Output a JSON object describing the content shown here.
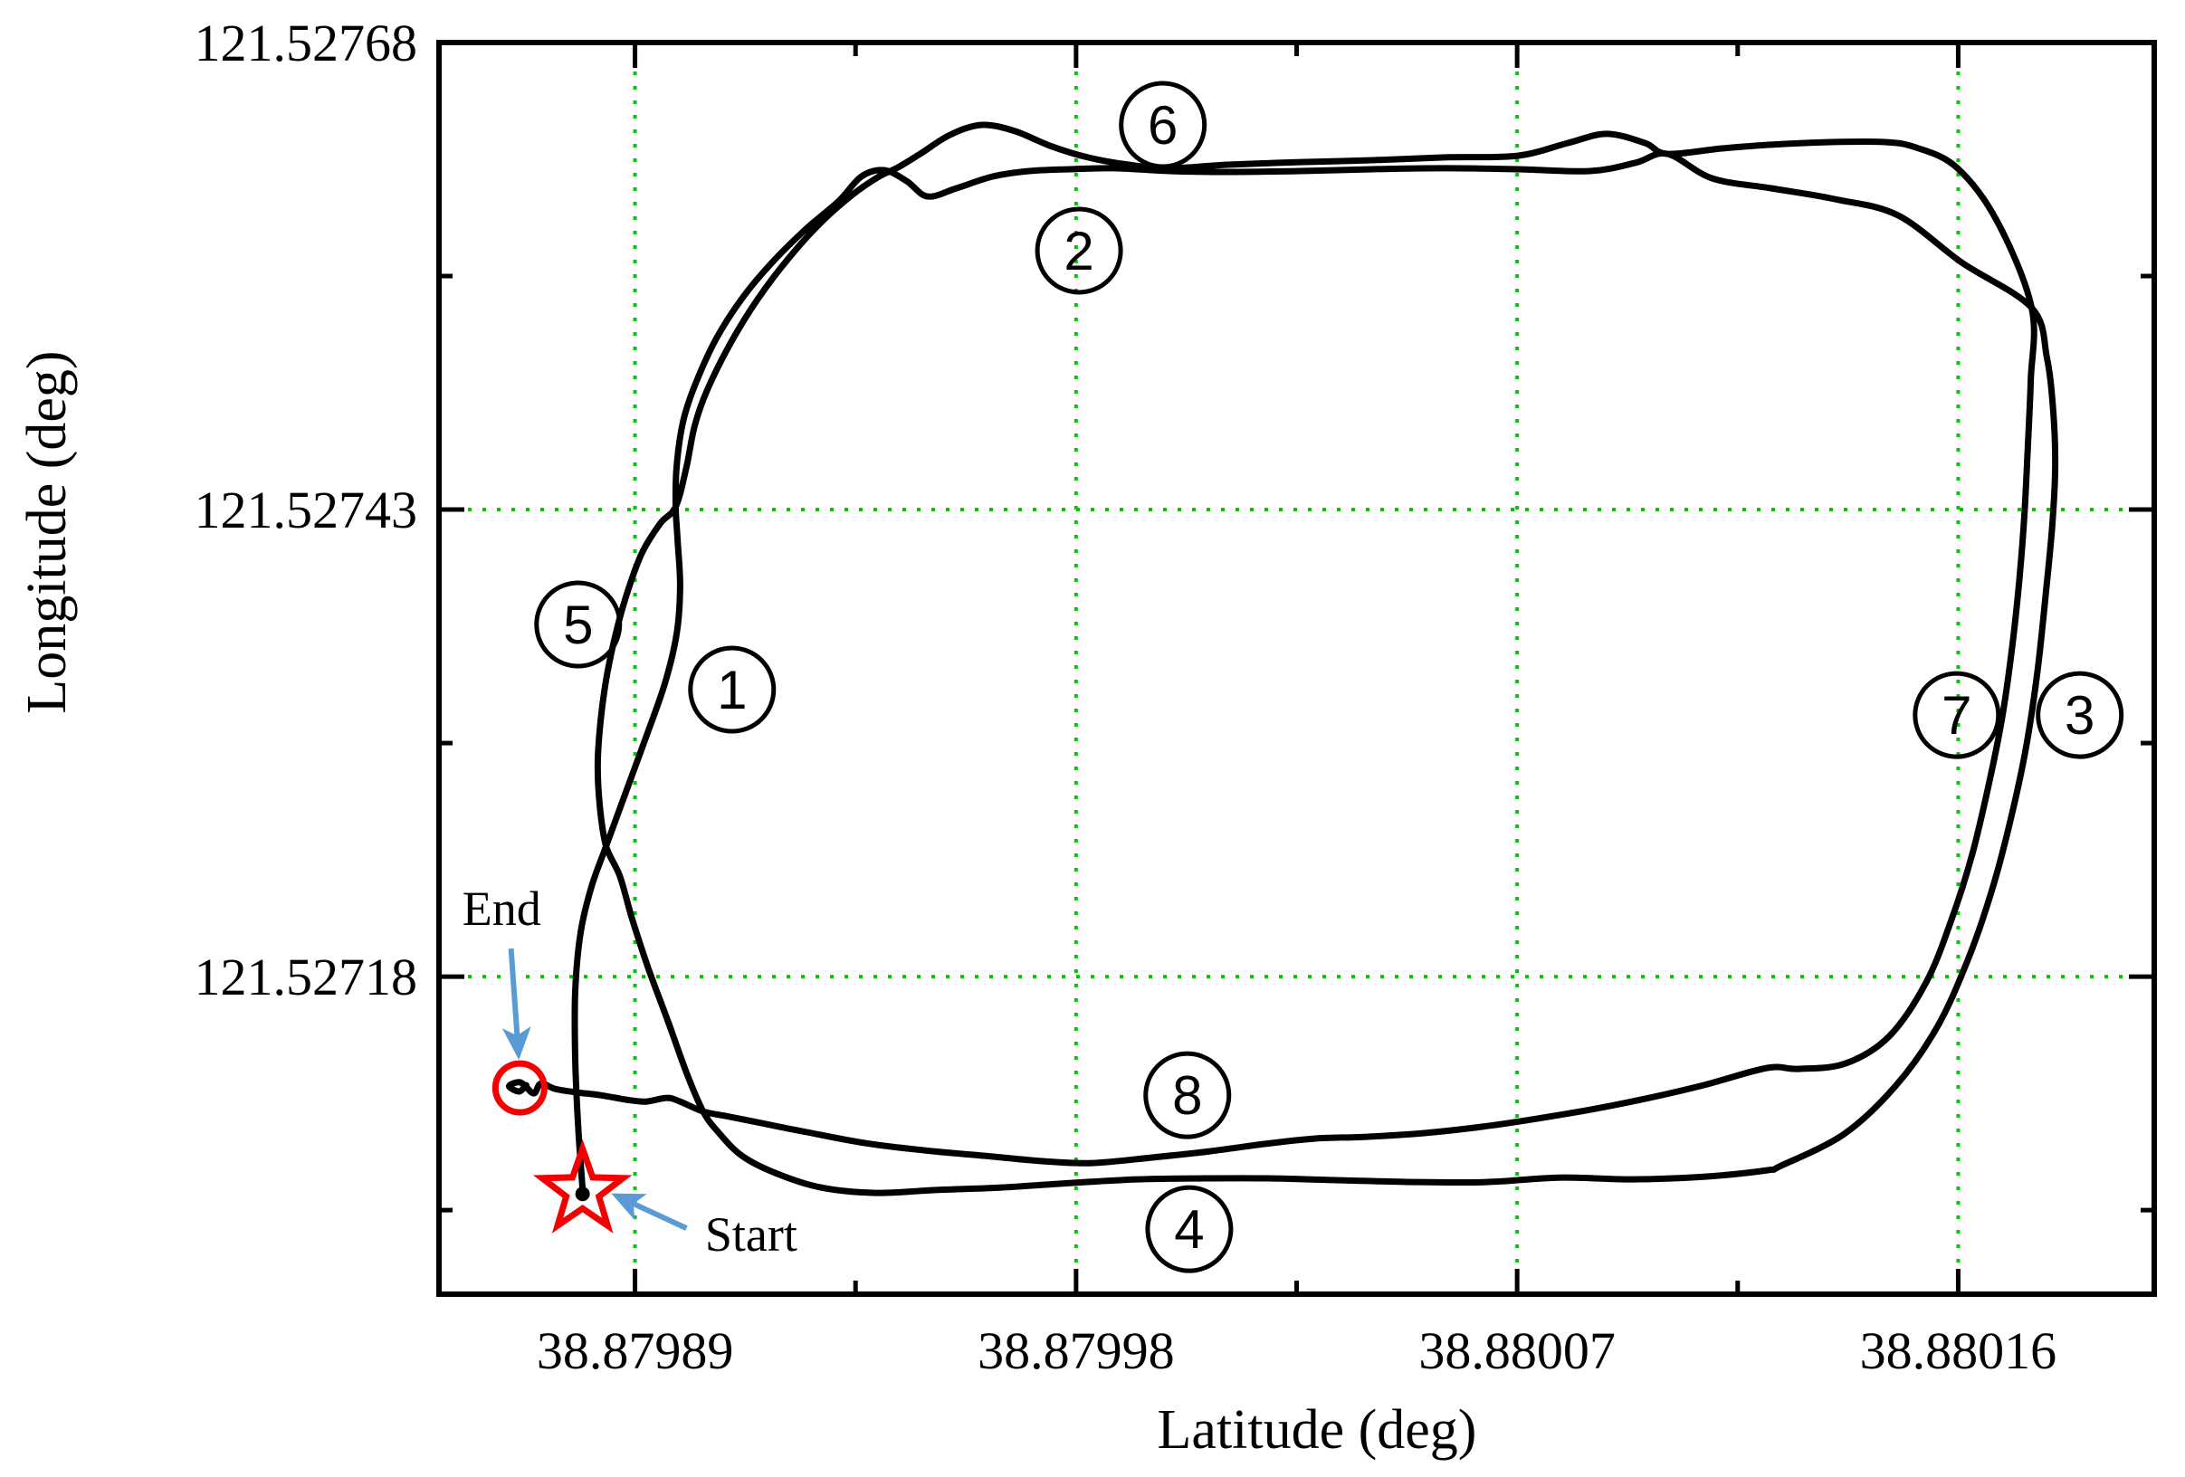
{
  "figure": {
    "background": "#ffffff",
    "frame_color": "#000000",
    "grid_color": "#00c800",
    "path_color": "#000000",
    "marker_color": "#f40000",
    "arrow_color": "#5b9bd5",
    "text_color": "#000000"
  },
  "chart_data": {
    "type": "line",
    "title": "",
    "xlabel": "Latitude (deg)",
    "ylabel": "Longitude (deg)",
    "legend": "none",
    "grid": "dotted green on major ticks",
    "x_range": [
      38.87985,
      38.8802
    ],
    "y_range": [
      121.52701,
      121.52768
    ],
    "x_ticks": [
      {
        "value": 38.87989,
        "label": "38.87989"
      },
      {
        "value": 38.87998,
        "label": "38.87998"
      },
      {
        "value": 38.88007,
        "label": "38.88007"
      },
      {
        "value": 38.88016,
        "label": "38.88016"
      }
    ],
    "y_ticks": [
      {
        "value": 121.52768,
        "label": "121.52768"
      },
      {
        "value": 121.52743,
        "label": "121.52743"
      },
      {
        "value": 121.52718,
        "label": "121.52718"
      }
    ],
    "x_tick_step": 9e-05,
    "y_tick_step": 0.00025,
    "trajectory": [
      [
        38.8798793,
        121.5270666
      ],
      [
        38.8798784,
        121.5270996
      ],
      [
        38.8798778,
        121.5271359
      ],
      [
        38.8798778,
        121.5271722
      ],
      [
        38.8798789,
        121.5272037
      ],
      [
        38.8798811,
        121.527228
      ],
      [
        38.8798841,
        121.5272498
      ],
      [
        38.8798878,
        121.5272764
      ],
      [
        38.8798922,
        121.5273079
      ],
      [
        38.8798961,
        121.527337
      ],
      [
        38.8798985,
        121.5273636
      ],
      [
        38.8798992,
        121.5273888
      ],
      [
        38.8798987,
        121.527413
      ],
      [
        38.8798983,
        121.5274315
      ],
      [
        38.8798985,
        121.5274533
      ],
      [
        38.8798998,
        121.527477
      ],
      [
        38.8799022,
        121.5274964
      ],
      [
        38.8799066,
        121.5275216
      ],
      [
        38.8799122,
        121.5275443
      ],
      [
        38.8799183,
        121.5275632
      ],
      [
        38.8799251,
        121.5275807
      ],
      [
        38.8799316,
        121.5275952
      ],
      [
        38.8799362,
        121.5276083
      ],
      [
        38.8799408,
        121.5276117
      ],
      [
        38.8799454,
        121.5276059
      ],
      [
        38.8799497,
        121.5275976
      ],
      [
        38.8799556,
        121.527602
      ],
      [
        38.879963,
        121.5276083
      ],
      [
        38.8799704,
        121.5276112
      ],
      [
        38.8799787,
        121.5276122
      ],
      [
        38.879988,
        121.5276127
      ],
      [
        38.879999,
        121.5276112
      ],
      [
        38.880011,
        121.5276107
      ],
      [
        38.8800258,
        121.5276112
      ],
      [
        38.8800405,
        121.5276122
      ],
      [
        38.8800553,
        121.5276127
      ],
      [
        38.8800701,
        121.5276122
      ],
      [
        38.8800849,
        121.5276112
      ],
      [
        38.8800941,
        121.5276156
      ],
      [
        38.8801006,
        121.5276204
      ],
      [
        38.8801098,
        121.5276073
      ],
      [
        38.8801218,
        121.527602
      ],
      [
        38.8801348,
        121.5275962
      ],
      [
        38.8801477,
        121.5275875
      ],
      [
        38.8801607,
        121.5275623
      ],
      [
        38.880175,
        121.527538
      ],
      [
        38.8801781,
        121.5275114
      ],
      [
        38.8801794,
        121.5274823
      ],
      [
        38.8801798,
        121.5274533
      ],
      [
        38.8801792,
        121.5274218
      ],
      [
        38.8801779,
        121.5273854
      ],
      [
        38.8801761,
        121.5273418
      ],
      [
        38.8801737,
        121.5273006
      ],
      [
        38.8801705,
        121.5272619
      ],
      [
        38.8801668,
        121.5272255
      ],
      [
        38.880162,
        121.5271892
      ],
      [
        38.8801557,
        121.5271529
      ],
      [
        38.8801472,
        121.5271214
      ],
      [
        38.8801367,
        121.5270957
      ],
      [
        38.8801238,
        121.5270787
      ],
      [
        38.880121,
        121.5270763
      ],
      [
        38.8801081,
        121.5270729
      ],
      [
        38.8800933,
        121.5270715
      ],
      [
        38.8800785,
        121.5270724
      ],
      [
        38.8800637,
        121.52707
      ],
      [
        38.8800489,
        121.52707
      ],
      [
        38.8800341,
        121.527071
      ],
      [
        38.8800194,
        121.527072
      ],
      [
        38.8800064,
        121.527072
      ],
      [
        38.8799926,
        121.5270715
      ],
      [
        38.8799787,
        121.5270695
      ],
      [
        38.8799648,
        121.5270671
      ],
      [
        38.879951,
        121.5270657
      ],
      [
        38.879939,
        121.5270642
      ],
      [
        38.8799279,
        121.5270671
      ],
      [
        38.8799186,
        121.5270749
      ],
      [
        38.8799118,
        121.5270841
      ],
      [
        38.879907,
        121.5270967
      ],
      [
        38.8799039,
        121.5271078
      ],
      [
        38.8799005,
        121.5271286
      ],
      [
        38.8798967,
        121.5271563
      ],
      [
        38.8798926,
        121.5271853
      ],
      [
        38.8798894,
        121.527211
      ],
      [
        38.8798869,
        121.5272338
      ],
      [
        38.8798841,
        121.5272498
      ],
      [
        38.8798828,
        121.5272716
      ],
      [
        38.8798824,
        121.5272943
      ],
      [
        38.879883,
        121.5273176
      ],
      [
        38.8798843,
        121.5273418
      ],
      [
        38.8798863,
        121.527366
      ],
      [
        38.8798887,
        121.5273878
      ],
      [
        38.8798915,
        121.5274072
      ],
      [
        38.8798952,
        121.5274227
      ],
      [
        38.8798983,
        121.5274315
      ],
      [
        38.8799005,
        121.5274528
      ],
      [
        38.8799022,
        121.5274751
      ],
      [
        38.8799048,
        121.5274944
      ],
      [
        38.8799096,
        121.5275196
      ],
      [
        38.8799151,
        121.5275429
      ],
      [
        38.8799214,
        121.5275647
      ],
      [
        38.8799281,
        121.5275841
      ],
      [
        38.8799344,
        121.5275986
      ],
      [
        38.8799395,
        121.5276078
      ],
      [
        38.8799436,
        121.5276131
      ],
      [
        38.8799482,
        121.5276204
      ],
      [
        38.8799543,
        121.5276306
      ],
      [
        38.8799608,
        121.5276359
      ],
      [
        38.8799676,
        121.5276325
      ],
      [
        38.8799746,
        121.5276248
      ],
      [
        38.8799824,
        121.5276185
      ],
      [
        38.8799907,
        121.5276146
      ],
      [
        38.879999,
        121.5276127
      ],
      [
        38.880011,
        121.5276146
      ],
      [
        38.8800258,
        121.527616
      ],
      [
        38.8800405,
        121.527617
      ],
      [
        38.8800553,
        121.5276185
      ],
      [
        38.8800701,
        121.5276194
      ],
      [
        38.8800803,
        121.5276262
      ],
      [
        38.8800883,
        121.5276311
      ],
      [
        38.8800961,
        121.5276262
      ],
      [
        38.8801006,
        121.5276204
      ],
      [
        38.8801118,
        121.5276233
      ],
      [
        38.8801218,
        121.5276253
      ],
      [
        38.8801339,
        121.5276267
      ],
      [
        38.880145,
        121.5276267
      ],
      [
        38.8801514,
        121.5276238
      ],
      [
        38.8801597,
        121.5276131
      ],
      [
        38.880168,
        121.5275841
      ],
      [
        38.880175,
        121.527538
      ],
      [
        38.8801748,
        121.5274993
      ],
      [
        38.8801742,
        121.5274629
      ],
      [
        38.8801735,
        121.5274266
      ],
      [
        38.8801724,
        121.5273903
      ],
      [
        38.8801709,
        121.5273539
      ],
      [
        38.8801689,
        121.5273176
      ],
      [
        38.8801661,
        121.5272813
      ],
      [
        38.8801628,
        121.5272449
      ],
      [
        38.8801587,
        121.527211
      ],
      [
        38.8801535,
        121.5271771
      ],
      [
        38.8801459,
        121.527148
      ],
      [
        38.880137,
        121.5271335
      ],
      [
        38.8801274,
        121.5271306
      ],
      [
        38.880121,
        121.5271311
      ],
      [
        38.8801081,
        121.5271219
      ],
      [
        38.8800961,
        121.5271146
      ],
      [
        38.880085,
        121.5271088
      ],
      [
        38.8800739,
        121.5271039
      ],
      [
        38.8800628,
        121.5270996
      ],
      [
        38.8800508,
        121.5270962
      ],
      [
        38.8800388,
        121.5270942
      ],
      [
        38.8800286,
        121.5270933
      ],
      [
        38.8800184,
        121.5270904
      ],
      [
        38.8800073,
        121.5270865
      ],
      [
        38.8799953,
        121.5270831
      ],
      [
        38.8799833,
        121.5270802
      ],
      [
        38.8799732,
        121.5270812
      ],
      [
        38.8799611,
        121.5270841
      ],
      [
        38.8799491,
        121.527087
      ],
      [
        38.8799371,
        121.5270908
      ],
      [
        38.8799251,
        121.5270967
      ],
      [
        38.8799159,
        121.5271015
      ],
      [
        38.8799085,
        121.5271054
      ],
      [
        38.8799039,
        121.5271078
      ],
      [
        38.8798992,
        121.5271131
      ],
      [
        38.8798965,
        121.5271151
      ],
      [
        38.8798922,
        121.5271131
      ],
      [
        38.8798882,
        121.5271141
      ],
      [
        38.879883,
        121.5271165
      ],
      [
        38.8798782,
        121.527118
      ],
      [
        38.8798737,
        121.5271199
      ],
      [
        38.8798708,
        121.5271228
      ],
      [
        38.8798693,
        121.5271175
      ],
      [
        38.8798667,
        121.5271233
      ],
      [
        38.8798643,
        121.5271214
      ],
      [
        38.8798663,
        121.5271185
      ],
      [
        38.8798678,
        121.5271219
      ]
    ],
    "waypoints": [
      {
        "label": "1",
        "lat": 38.8799098,
        "lon": 121.5273336
      },
      {
        "label": "2",
        "lat": 38.8799806,
        "lon": 121.5275686
      },
      {
        "label": "3",
        "lat": 38.8801848,
        "lon": 121.52732
      },
      {
        "label": "4",
        "lat": 38.8800031,
        "lon": 121.5270448
      },
      {
        "label": "5",
        "lat": 38.8798784,
        "lon": 121.5273685
      },
      {
        "label": "6",
        "lat": 38.8799977,
        "lon": 121.5276359
      },
      {
        "label": "7",
        "lat": 38.8801597,
        "lon": 121.52732
      },
      {
        "label": "8",
        "lat": 38.8800027,
        "lon": 121.5271165
      }
    ],
    "start_marker": {
      "shape": "star",
      "lat": 38.8798793,
      "lon": 121.5270651
    },
    "end_marker": {
      "shape": "circle",
      "lat": 38.8798665,
      "lon": 121.5271204
    },
    "annotations": {
      "start_text": {
        "text": "Start",
        "lat": 38.8799137,
        "lon": 121.5270424
      },
      "end_text": {
        "text": "End",
        "lat": 38.8798628,
        "lon": 121.5272168
      },
      "start_arrow": {
        "tail": [
          38.8799005,
          121.5270453
        ],
        "head": [
          38.8798865,
          121.5270623
        ]
      },
      "end_arrow": {
        "tail": [
          38.8798647,
          121.527195
        ],
        "head": [
          38.8798662,
          121.5271393
        ]
      }
    }
  }
}
